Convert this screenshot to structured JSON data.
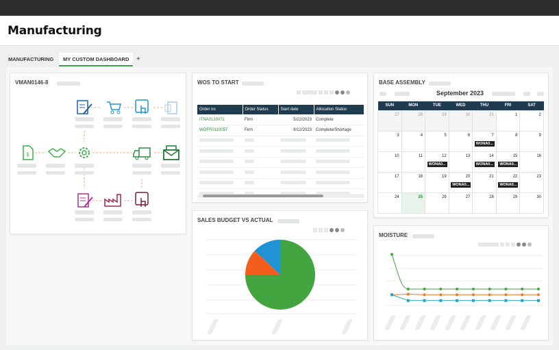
{
  "app": {
    "title": "Manufacturing"
  },
  "tabs": [
    {
      "label": "MANUFACTURING"
    },
    {
      "label": "MY CUSTOM DASHBOARD"
    },
    {
      "label": "+"
    }
  ],
  "cards": {
    "process": {
      "title": "VMAN0146-8"
    },
    "wos": {
      "title": "WOS TO START",
      "columns": [
        "Order no",
        "Order Status",
        "Start date",
        "Allocation Status"
      ],
      "rows": [
        [
          "ITNA0120071",
          "Firm",
          "5/22/2023",
          "Complete"
        ],
        [
          "WOFR0110057",
          "Firm",
          "8/12/2023",
          "Complete/Shortage"
        ]
      ]
    },
    "base_assembly": {
      "title": "BASE ASSEMBLY",
      "month": "September 2023",
      "weekdays": [
        "SUN",
        "MON",
        "TUE",
        "WED",
        "THU",
        "FRI",
        "SAT"
      ],
      "weeks": [
        [
          "27",
          "28",
          "29",
          "30",
          "31",
          "1",
          "2"
        ],
        [
          "3",
          "4",
          "5",
          "6",
          "7",
          "8",
          "9"
        ],
        [
          "10",
          "11",
          "12",
          "13",
          "14",
          "15",
          "16"
        ],
        [
          "17",
          "18",
          "19",
          "20",
          "21",
          "22",
          "23"
        ],
        [
          "24",
          "25",
          "26",
          "27",
          "28",
          "29",
          "30"
        ]
      ],
      "event_label": "WONA0..."
    },
    "sales": {
      "title": "SALES BUDGET VS ACTUAL"
    },
    "moisture": {
      "title": "MOISTURE"
    }
  },
  "chart_data": [
    {
      "type": "pie",
      "title": "SALES BUDGET VS ACTUAL",
      "slices": [
        {
          "value": 75,
          "color": "#43a53f"
        },
        {
          "value": 12,
          "color": "#f45d1c"
        },
        {
          "value": 13,
          "color": "#1f93d4"
        }
      ]
    },
    {
      "type": "line",
      "title": "MOISTURE",
      "series": [
        {
          "color": "#43a53f",
          "values": [
            80,
            20,
            20,
            20,
            20,
            20,
            20,
            20,
            20,
            20
          ]
        },
        {
          "color": "#f07a2a",
          "values": [
            10,
            11,
            10,
            10,
            10,
            10,
            10,
            10,
            10,
            10
          ]
        },
        {
          "color": "#1fa5c5",
          "values": [
            10,
            0,
            0,
            0,
            0,
            0,
            0,
            0,
            0,
            0
          ]
        }
      ],
      "ylim": [
        -5,
        90
      ]
    }
  ],
  "colors": {
    "accent": "#3ea24a",
    "header_navy": "#1f3b50"
  }
}
